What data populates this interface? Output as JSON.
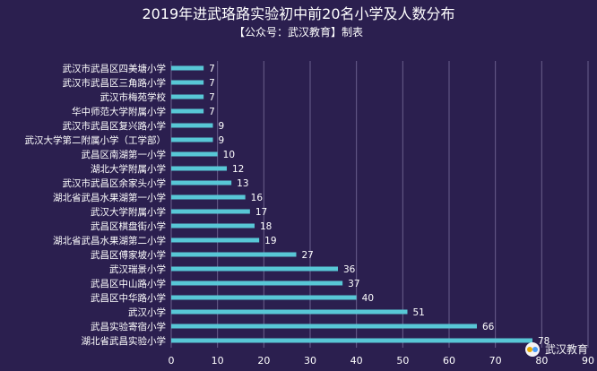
{
  "header": {
    "title": "2019年进武珞路实验初中前20名小学及人数分布",
    "subtitle": "【公众号：武汉教育】制表"
  },
  "watermark": {
    "logo_icon": "wechat-logo-icon",
    "text": "武汉教育"
  },
  "colors": {
    "background": "#2b1f4f",
    "bar": "#58c7d6",
    "grid": "#6a5f8c",
    "text": "#ffffff"
  },
  "chart_data": {
    "type": "bar",
    "orientation": "horizontal",
    "title": "2019年进武珞路实验初中前20名小学及人数分布",
    "subtitle": "【公众号：武汉教育】制表",
    "xlim": [
      0,
      90
    ],
    "x_ticks": [
      0,
      10,
      20,
      30,
      40,
      50,
      60,
      70,
      80,
      90
    ],
    "grid": "vertical",
    "categories": [
      "武汉市武昌区四美塘小学",
      "武汉市武昌区三角路小学",
      "武汉市梅苑学校",
      "华中师范大学附属小学",
      "武汉市武昌区复兴路小学",
      "武汉大学第二附属小学（工学部）",
      "武昌区南湖第一小学",
      "湖北大学附属小学",
      "武汉市武昌区余家头小学",
      "湖北省武昌水果湖第一小学",
      "武汉大学附属小学",
      "武昌区棋盘街小学",
      "湖北省武昌水果湖第二小学",
      "武昌区傅家坡小学",
      "武汉瑞景小学",
      "武昌区中山路小学",
      "武昌区中华路小学",
      "武汉小学",
      "武昌实验寄宿小学",
      "湖北省武昌实验小学"
    ],
    "values": [
      7,
      7,
      7,
      7,
      9,
      9,
      10,
      12,
      13,
      16,
      17,
      18,
      19,
      27,
      36,
      37,
      40,
      51,
      66,
      78
    ]
  }
}
